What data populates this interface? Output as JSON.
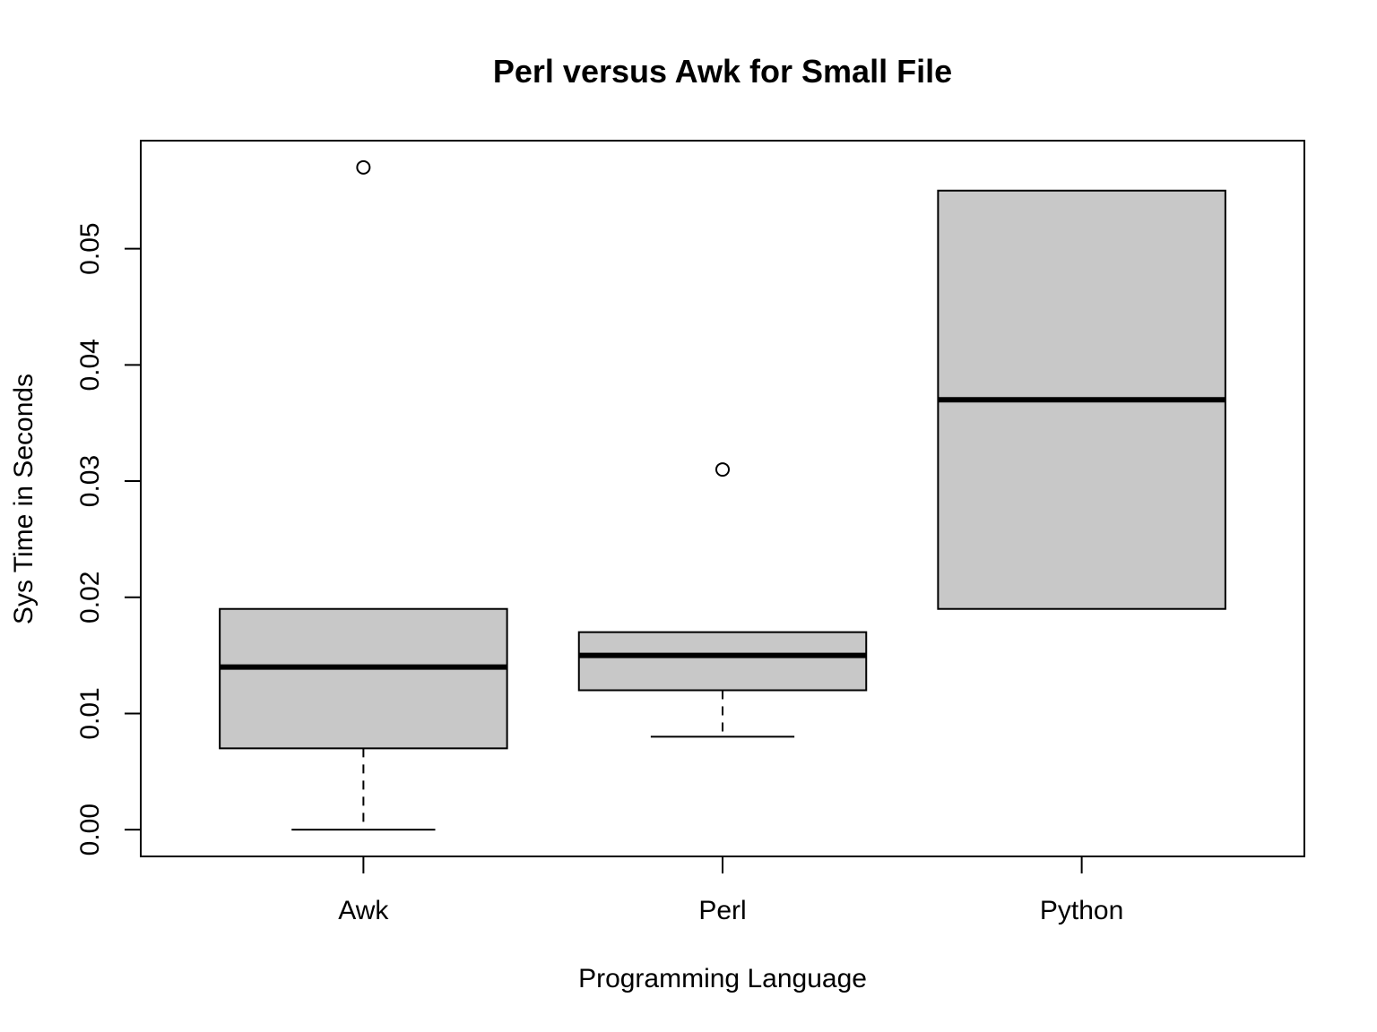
{
  "chart_data": {
    "type": "boxplot",
    "title": "Perl versus Awk for Small File",
    "xlabel": "Programming Language",
    "ylabel": "Sys Time in Seconds",
    "ylim": [
      -0.0023,
      0.0593
    ],
    "yticks": [
      0.0,
      0.01,
      0.02,
      0.03,
      0.04,
      0.05
    ],
    "ytick_labels": [
      "0.00",
      "0.01",
      "0.02",
      "0.03",
      "0.04",
      "0.05"
    ],
    "categories": [
      "Awk",
      "Perl",
      "Python"
    ],
    "grid": false,
    "box_fill": "#c8c8c8",
    "boxes": [
      {
        "category": "Awk",
        "whisker_low": 0.0,
        "q1": 0.007,
        "median": 0.014,
        "q3": 0.019,
        "whisker_high": 0.019,
        "outliers": [
          0.057
        ]
      },
      {
        "category": "Perl",
        "whisker_low": 0.008,
        "q1": 0.012,
        "median": 0.015,
        "q3": 0.017,
        "whisker_high": 0.017,
        "outliers": [
          0.031
        ]
      },
      {
        "category": "Python",
        "whisker_low": 0.019,
        "q1": 0.019,
        "median": 0.037,
        "q3": 0.055,
        "whisker_high": 0.055,
        "outliers": []
      }
    ]
  }
}
